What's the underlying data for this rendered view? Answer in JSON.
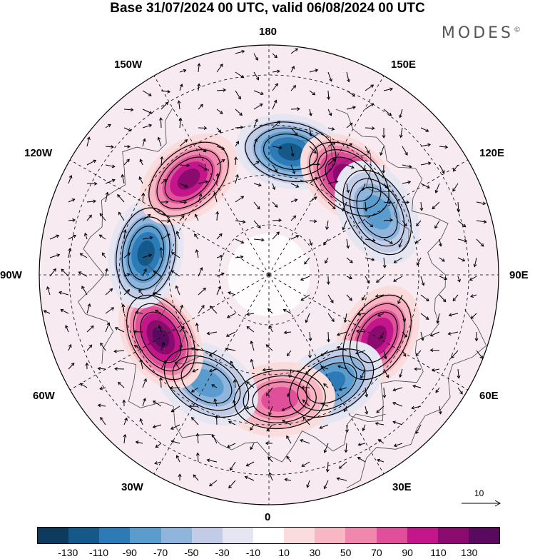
{
  "title": "Base 31/07/2024 00 UTC, valid 06/08/2024 00 UTC",
  "brand": "MODES",
  "brand_mark": "©",
  "lon_labels": {
    "l180": "180",
    "l150w": "150W",
    "l150e": "150E",
    "l120w": "120W",
    "l120e": "120E",
    "l90w": "90W",
    "l90e": "90E",
    "l60w": "60W",
    "l60e": "60E",
    "l30w": "30W",
    "l30e": "30E",
    "l0": "0"
  },
  "ref_vector_label": "10",
  "colorbar": {
    "colors": [
      "#0d3b5e",
      "#14598a",
      "#2c7bb6",
      "#5a9ccd",
      "#8fb5dd",
      "#c2cce6",
      "#e6e6f2",
      "#ffffff",
      "#fadcdc",
      "#f7b8c4",
      "#f088ad",
      "#e0509a",
      "#c2168a",
      "#8b0a6e",
      "#5a0a5e"
    ],
    "ticks": [
      "-130",
      "-110",
      "-90",
      "-70",
      "-50",
      "-30",
      "-10",
      "10",
      "30",
      "50",
      "70",
      "90",
      "110",
      "130"
    ]
  },
  "anomaly_centers": [
    {
      "lon": 170,
      "sign": "neg",
      "strength": 90
    },
    {
      "lon": 140,
      "sign": "pos",
      "strength": 110
    },
    {
      "lon": 120,
      "sign": "neg",
      "strength": 50
    },
    {
      "lon": 60,
      "sign": "pos",
      "strength": 90
    },
    {
      "lon": 30,
      "sign": "neg",
      "strength": 70
    },
    {
      "lon": 5,
      "sign": "pos",
      "strength": 50
    },
    {
      "lon": -30,
      "sign": "neg",
      "strength": 50
    },
    {
      "lon": -60,
      "sign": "pos",
      "strength": 110
    },
    {
      "lon": -100,
      "sign": "neg",
      "strength": 90
    },
    {
      "lon": -140,
      "sign": "pos",
      "strength": 90
    }
  ]
}
